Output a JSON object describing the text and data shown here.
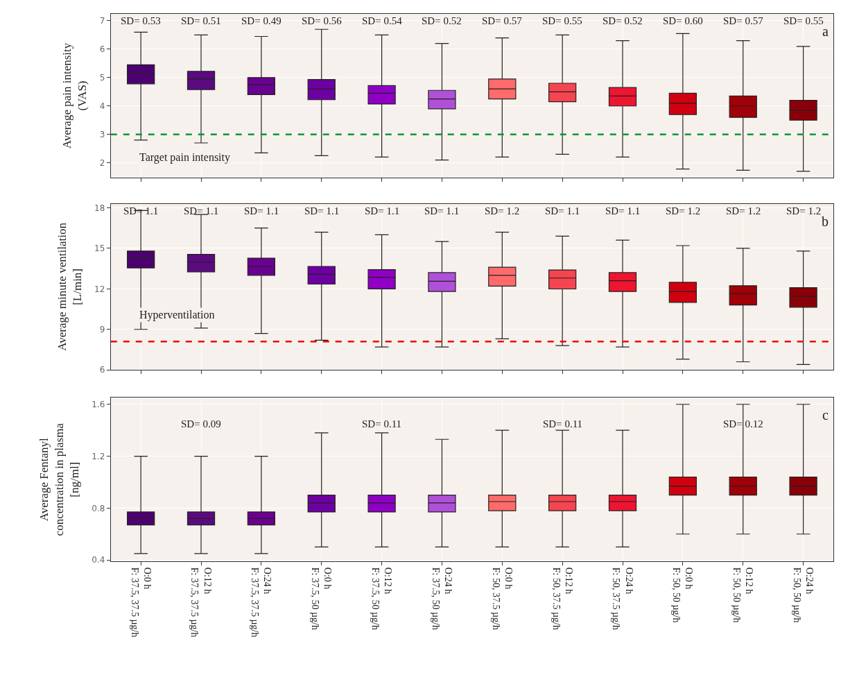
{
  "chart_data": [
    {
      "type": "box",
      "ylabel": "Average pain intensity\n(VAS)",
      "tick_labels": "y",
      "grid": true,
      "categories": [
        null,
        null,
        null,
        null,
        null,
        null,
        null,
        null,
        null,
        null,
        null,
        null
      ],
      "colors": [
        "#4d0070",
        "#5c0a80",
        "#6a0090",
        "#6d00a0",
        "#8f00c4",
        "#b050d8",
        "#ff6b6b",
        "#f44550",
        "#ee1530",
        "#d00010",
        "#a00008",
        "#8a0008"
      ],
      "boxes": [
        {
          "low": 2.8,
          "q1": 4.78,
          "median": 5.15,
          "q3": 5.45,
          "high": 6.6
        },
        {
          "low": 2.7,
          "q1": 4.58,
          "median": 4.95,
          "q3": 5.22,
          "high": 6.5
        },
        {
          "low": 2.35,
          "q1": 4.4,
          "median": 4.75,
          "q3": 5.0,
          "high": 6.45
        },
        {
          "low": 2.25,
          "q1": 4.22,
          "median": 4.6,
          "q3": 4.93,
          "high": 6.7
        },
        {
          "low": 2.2,
          "q1": 4.07,
          "median": 4.45,
          "q3": 4.72,
          "high": 6.5
        },
        {
          "low": 2.1,
          "q1": 3.9,
          "median": 4.25,
          "q3": 4.55,
          "high": 6.2
        },
        {
          "low": 2.2,
          "q1": 4.25,
          "median": 4.6,
          "q3": 4.95,
          "high": 6.4
        },
        {
          "low": 2.3,
          "q1": 4.15,
          "median": 4.5,
          "q3": 4.8,
          "high": 6.5
        },
        {
          "low": 2.2,
          "q1": 4.0,
          "median": 4.35,
          "q3": 4.65,
          "high": 6.3
        },
        {
          "low": 1.78,
          "q1": 3.7,
          "median": 4.1,
          "q3": 4.45,
          "high": 6.55
        },
        {
          "low": 1.74,
          "q1": 3.6,
          "median": 4.0,
          "q3": 4.35,
          "high": 6.3
        },
        {
          "low": 1.7,
          "q1": 3.5,
          "median": 3.85,
          "q3": 4.2,
          "high": 6.1
        }
      ],
      "ylim": [
        1.47,
        7.25
      ],
      "yticks": [
        2,
        3,
        4,
        5,
        6,
        7
      ],
      "ref_lines": [
        {
          "axis": "y",
          "value": 3,
          "label": "Target pain intensity",
          "color": "#009933",
          "line_style": "dashed"
        }
      ],
      "annotations": [
        "a",
        "SD= 0.53",
        "SD= 0.51",
        "SD= 0.49",
        "SD= 0.56",
        "SD= 0.54",
        "SD= 0.52",
        "SD= 0.57",
        "SD= 0.55",
        "SD= 0.52",
        "SD= 0.60",
        "SD= 0.57",
        "SD= 0.55"
      ]
    },
    {
      "type": "box",
      "ylabel": "Average minute ventilation\n[L/min]",
      "tick_labels": "y",
      "grid": true,
      "categories": [
        null,
        null,
        null,
        null,
        null,
        null,
        null,
        null,
        null,
        null,
        null,
        null
      ],
      "colors": [
        "#4d0070",
        "#5c0a80",
        "#6a0090",
        "#6d00a0",
        "#8f00c4",
        "#b050d8",
        "#ff6b6b",
        "#f44550",
        "#ee1530",
        "#d00010",
        "#a00008",
        "#8a0008"
      ],
      "boxes": [
        {
          "low": 9.0,
          "q1": 13.55,
          "median": 14.3,
          "q3": 14.8,
          "high": 17.8
        },
        {
          "low": 9.1,
          "q1": 13.26,
          "median": 13.97,
          "q3": 14.55,
          "high": 17.5
        },
        {
          "low": 8.7,
          "q1": 13.0,
          "median": 13.66,
          "q3": 14.27,
          "high": 16.5
        },
        {
          "low": 8.2,
          "q1": 12.35,
          "median": 13.08,
          "q3": 13.66,
          "high": 16.2
        },
        {
          "low": 7.7,
          "q1": 12.0,
          "median": 12.86,
          "q3": 13.42,
          "high": 16.0
        },
        {
          "low": 7.7,
          "q1": 11.8,
          "median": 12.56,
          "q3": 13.2,
          "high": 15.5
        },
        {
          "low": 8.3,
          "q1": 12.2,
          "median": 13.0,
          "q3": 13.6,
          "high": 16.2
        },
        {
          "low": 7.8,
          "q1": 11.99,
          "median": 12.8,
          "q3": 13.4,
          "high": 15.9
        },
        {
          "low": 7.7,
          "q1": 11.8,
          "median": 12.6,
          "q3": 13.2,
          "high": 15.6
        },
        {
          "low": 6.8,
          "q1": 11.0,
          "median": 11.79,
          "q3": 12.48,
          "high": 15.2
        },
        {
          "low": 6.6,
          "q1": 10.8,
          "median": 11.64,
          "q3": 12.23,
          "high": 15.0
        },
        {
          "low": 6.4,
          "q1": 10.64,
          "median": 11.43,
          "q3": 12.09,
          "high": 14.8
        }
      ],
      "ylim": [
        6.0,
        18.3
      ],
      "yticks": [
        6,
        9,
        12,
        15,
        18
      ],
      "ref_lines": [
        {
          "axis": "y",
          "value": 8.1,
          "label": "Hyperventilation",
          "color": "#ee0000",
          "line_style": "dashed"
        }
      ],
      "annotations": [
        "b",
        "SD= 1.1",
        "SD= 1.1",
        "SD= 1.1",
        "SD= 1.1",
        "SD= 1.1",
        "SD= 1.1",
        "SD= 1.2",
        "SD= 1.1",
        "SD= 1.1",
        "SD= 1.2",
        "SD= 1.2",
        "SD= 1.2"
      ]
    },
    {
      "type": "box",
      "ylabel": "Average Fentanyl\nconcentration in plasma\n[ng/ml]",
      "grid": true,
      "categories": [
        "O:0 h\nF: 37.5, 37.5 µg/h",
        "O:12 h\nF: 37.5, 37.5 µg/h",
        "O:24 h\nF: 37.5, 37.5 µg/h",
        "O:0 h\nF: 37.5, 50 µg/h",
        "O:12 h\nF: 37.5, 50 µg/h",
        "O:24 h\nF: 37.5, 50 µg/h",
        "O:0 h\nF: 50, 37.5 µg/h",
        "O:12 h\nF: 50, 37.5 µg/h",
        "O:24 h\nF: 50, 37.5 µg/h",
        "O:0 h\nF: 50, 50 µg/h",
        "O:12 h\nF: 50, 50 µg/h",
        "O:24 h\nF: 50, 50 µg/h"
      ],
      "colors": [
        "#4d0070",
        "#5c0a80",
        "#6a0090",
        "#6d00a0",
        "#8f00c4",
        "#b050d8",
        "#ff6b6b",
        "#f44550",
        "#ee1530",
        "#d00010",
        "#a00008",
        "#8a0008"
      ],
      "boxes": [
        {
          "low": 0.45,
          "q1": 0.67,
          "median": 0.72,
          "q3": 0.77,
          "high": 1.2
        },
        {
          "low": 0.45,
          "q1": 0.67,
          "median": 0.72,
          "q3": 0.77,
          "high": 1.2
        },
        {
          "low": 0.45,
          "q1": 0.67,
          "median": 0.72,
          "q3": 0.77,
          "high": 1.2
        },
        {
          "low": 0.5,
          "q1": 0.77,
          "median": 0.84,
          "q3": 0.9,
          "high": 1.38
        },
        {
          "low": 0.5,
          "q1": 0.77,
          "median": 0.84,
          "q3": 0.9,
          "high": 1.38
        },
        {
          "low": 0.5,
          "q1": 0.77,
          "median": 0.84,
          "q3": 0.9,
          "high": 1.33
        },
        {
          "low": 0.5,
          "q1": 0.78,
          "median": 0.85,
          "q3": 0.9,
          "high": 1.4
        },
        {
          "low": 0.5,
          "q1": 0.78,
          "median": 0.85,
          "q3": 0.9,
          "high": 1.4
        },
        {
          "low": 0.5,
          "q1": 0.78,
          "median": 0.85,
          "q3": 0.9,
          "high": 1.4
        },
        {
          "low": 0.6,
          "q1": 0.9,
          "median": 0.97,
          "q3": 1.04,
          "high": 1.6
        },
        {
          "low": 0.6,
          "q1": 0.9,
          "median": 0.97,
          "q3": 1.04,
          "high": 1.6
        },
        {
          "low": 0.6,
          "q1": 0.9,
          "median": 0.97,
          "q3": 1.04,
          "high": 1.6
        }
      ],
      "ylim": [
        0.39,
        1.65
      ],
      "yticks": [
        0.4,
        0.8,
        1.2,
        1.6
      ],
      "annotations": [
        "c",
        "SD= 0.09",
        "SD= 0.11",
        "SD= 0.11",
        "SD= 0.12"
      ]
    }
  ]
}
